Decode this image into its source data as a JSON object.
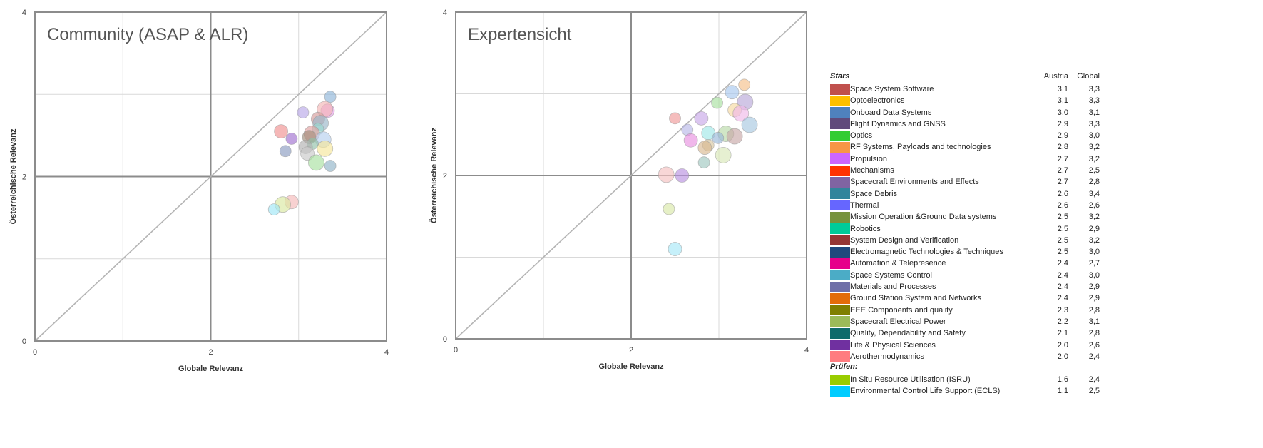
{
  "colors": {
    "grid_major": "#8c8c8c",
    "grid_minor": "#d9d9d9",
    "diagonal": "#b5b5b5",
    "bubble_stroke": "#9a9a9a"
  },
  "chart_data": [
    {
      "type": "scatter",
      "title": "Community (ASAP & ALR)",
      "xlabel": "Globale Relevanz",
      "ylabel": "Österreichische Relevanz",
      "xlim": [
        0,
        4
      ],
      "ylim": [
        0,
        4
      ],
      "x_ticks": [
        "0",
        "2",
        "4"
      ],
      "y_ticks": [
        "0",
        "2",
        "4"
      ],
      "diagonal": true,
      "grid": true,
      "points": [
        {
          "x": 3.36,
          "y": 2.97,
          "color": "#8fb6d8"
        },
        {
          "x": 3.33,
          "y": 2.8,
          "color": "#e8a0e8"
        },
        {
          "x": 3.3,
          "y": 2.82,
          "color": "#f2b5b5"
        },
        {
          "x": 3.05,
          "y": 2.78,
          "color": "#b9a7e8"
        },
        {
          "x": 3.22,
          "y": 2.7,
          "color": "#d49a9a"
        },
        {
          "x": 3.25,
          "y": 2.65,
          "color": "#9ab5c8"
        },
        {
          "x": 3.22,
          "y": 2.58,
          "color": "#9ad8d0"
        },
        {
          "x": 2.8,
          "y": 2.55,
          "color": "#f09090"
        },
        {
          "x": 3.15,
          "y": 2.52,
          "color": "#e0a0a0"
        },
        {
          "x": 2.92,
          "y": 2.46,
          "color": "#a070d0"
        },
        {
          "x": 3.12,
          "y": 2.48,
          "color": "#a08c7a"
        },
        {
          "x": 3.28,
          "y": 2.45,
          "color": "#b6d0ee"
        },
        {
          "x": 3.16,
          "y": 2.4,
          "color": "#90c0a8"
        },
        {
          "x": 3.08,
          "y": 2.36,
          "color": "#b0b0b0"
        },
        {
          "x": 3.3,
          "y": 2.34,
          "color": "#f6e69a"
        },
        {
          "x": 2.85,
          "y": 2.31,
          "color": "#8a9bc0"
        },
        {
          "x": 3.1,
          "y": 2.28,
          "color": "#c8c8c8"
        },
        {
          "x": 3.2,
          "y": 2.17,
          "color": "#a8e0a0"
        },
        {
          "x": 3.36,
          "y": 2.13,
          "color": "#90b4c8"
        },
        {
          "x": 2.92,
          "y": 1.69,
          "color": "#f4b8b8"
        },
        {
          "x": 2.82,
          "y": 1.66,
          "color": "#d8e8a0"
        },
        {
          "x": 2.72,
          "y": 1.6,
          "color": "#a0e6f6"
        }
      ]
    },
    {
      "type": "scatter",
      "title": "Expertensicht",
      "xlabel": "Globale Relevanz",
      "ylabel": "Österreichische Relevanz",
      "xlim": [
        0,
        4
      ],
      "ylim": [
        0,
        4
      ],
      "x_ticks": [
        "0",
        "2",
        "4"
      ],
      "y_ticks": [
        "0",
        "2",
        "4"
      ],
      "diagonal": true,
      "grid": true,
      "points": [
        {
          "x": 3.29,
          "y": 3.11,
          "color": "#f4c08a"
        },
        {
          "x": 3.15,
          "y": 3.02,
          "color": "#a8c8ee"
        },
        {
          "x": 3.3,
          "y": 2.9,
          "color": "#b8a8d8"
        },
        {
          "x": 2.98,
          "y": 2.89,
          "color": "#a8e0a0"
        },
        {
          "x": 3.18,
          "y": 2.8,
          "color": "#f6d8a0"
        },
        {
          "x": 3.25,
          "y": 2.76,
          "color": "#f0b8e8"
        },
        {
          "x": 2.5,
          "y": 2.7,
          "color": "#f09a9a"
        },
        {
          "x": 2.8,
          "y": 2.7,
          "color": "#c8a8e8"
        },
        {
          "x": 3.35,
          "y": 2.62,
          "color": "#a8c8e0"
        },
        {
          "x": 2.64,
          "y": 2.56,
          "color": "#b8b8e8"
        },
        {
          "x": 2.88,
          "y": 2.52,
          "color": "#a0e8e8"
        },
        {
          "x": 3.08,
          "y": 2.51,
          "color": "#b8d8a8"
        },
        {
          "x": 2.99,
          "y": 2.46,
          "color": "#9ab8d8"
        },
        {
          "x": 2.68,
          "y": 2.43,
          "color": "#e890e0"
        },
        {
          "x": 3.18,
          "y": 2.48,
          "color": "#c8a8a8"
        },
        {
          "x": 2.88,
          "y": 2.37,
          "color": "#d8c8a0"
        },
        {
          "x": 2.84,
          "y": 2.34,
          "color": "#d8b890"
        },
        {
          "x": 3.05,
          "y": 2.25,
          "color": "#d8e8b8"
        },
        {
          "x": 2.83,
          "y": 2.16,
          "color": "#a0c8c0"
        },
        {
          "x": 2.58,
          "y": 2.0,
          "color": "#b890e0"
        },
        {
          "x": 2.4,
          "y": 2.01,
          "color": "#f4c0c0"
        },
        {
          "x": 2.43,
          "y": 1.59,
          "color": "#d8e8a8"
        },
        {
          "x": 2.5,
          "y": 1.1,
          "color": "#a8e8f8"
        }
      ]
    }
  ],
  "legend": {
    "col_austria": "Austria",
    "col_global": "Global",
    "sections": [
      {
        "title": "Stars",
        "items": [
          {
            "label": "Space System Software",
            "color": "#c0504d",
            "austria": "3,1",
            "global": "3,3"
          },
          {
            "label": "Optoelectronics",
            "color": "#ffc000",
            "austria": "3,1",
            "global": "3,3"
          },
          {
            "label": "Onboard  Data Systems",
            "color": "#4f81bd",
            "austria": "3,0",
            "global": "3,1"
          },
          {
            "label": "Flight Dynamics and GNSS",
            "color": "#604a7b",
            "austria": "2,9",
            "global": "3,3"
          },
          {
            "label": "Optics",
            "color": "#33cc33",
            "austria": "2,9",
            "global": "3,0"
          },
          {
            "label": "RF Systems, Payloads and technologies",
            "color": "#f79646",
            "austria": "2,8",
            "global": "3,2"
          },
          {
            "label": "Propulsion",
            "color": "#cc66ff",
            "austria": "2,7",
            "global": "3,2"
          },
          {
            "label": "Mechanisms",
            "color": "#ff3300",
            "austria": "2,7",
            "global": "2,5"
          },
          {
            "label": "Spacecraft Environments and Effects",
            "color": "#8064a2",
            "austria": "2,7",
            "global": "2,8"
          },
          {
            "label": "Space Debris",
            "color": "#31859c",
            "austria": "2,6",
            "global": "3,4"
          },
          {
            "label": "Thermal",
            "color": "#6666ff",
            "austria": "2,6",
            "global": "2,6"
          },
          {
            "label": "Mission Operation   &Ground  Data  systems",
            "color": "#77933c",
            "austria": "2,5",
            "global": "3,2"
          },
          {
            "label": "Robotics",
            "color": "#00cc99",
            "austria": "2,5",
            "global": "2,9"
          },
          {
            "label": "System Design and Verification",
            "color": "#953735",
            "austria": "2,5",
            "global": "3,2"
          },
          {
            "label": "Electromagnetic   Technologies  & Techniques",
            "color": "#1f497d",
            "austria": "2,5",
            "global": "3,0"
          },
          {
            "label": "Automation & Telepresence",
            "color": "#e6008a",
            "austria": "2,4",
            "global": "2,7"
          },
          {
            "label": "Space Systems Control",
            "color": "#4bacc6",
            "austria": "2,4",
            "global": "3,0"
          },
          {
            "label": "Materials and Processes",
            "color": "#6f6fa8",
            "austria": "2,4",
            "global": "2,9"
          },
          {
            "label": "Ground Station System and Networks",
            "color": "#e36c09",
            "austria": "2,4",
            "global": "2,9"
          },
          {
            "label": "EEE  Components   and quality",
            "color": "#7f7f00",
            "austria": "2,3",
            "global": "2,8"
          },
          {
            "label": "Spacecraft Electrical Power",
            "color": "#9bbb59",
            "austria": "2,2",
            "global": "3,1"
          },
          {
            "label": "Quality, Dependability and Safety",
            "color": "#0e6b6b",
            "austria": "2,1",
            "global": "2,8"
          },
          {
            "label": "Life & Physical Sciences",
            "color": "#7030a0",
            "austria": "2,0",
            "global": "2,6"
          },
          {
            "label": "Aerothermodynamics",
            "color": "#ff7c80",
            "austria": "2,0",
            "global": "2,4"
          }
        ]
      },
      {
        "title": "Prüfen:",
        "items": [
          {
            "label": "In Situ Resource Utilisation (ISRU)",
            "color": "#99cc00",
            "austria": "1,6",
            "global": "2,4"
          },
          {
            "label": "Environmental Control Life Support (ECLS)",
            "color": "#00ccff",
            "austria": "1,1",
            "global": "2,5"
          }
        ]
      }
    ]
  }
}
